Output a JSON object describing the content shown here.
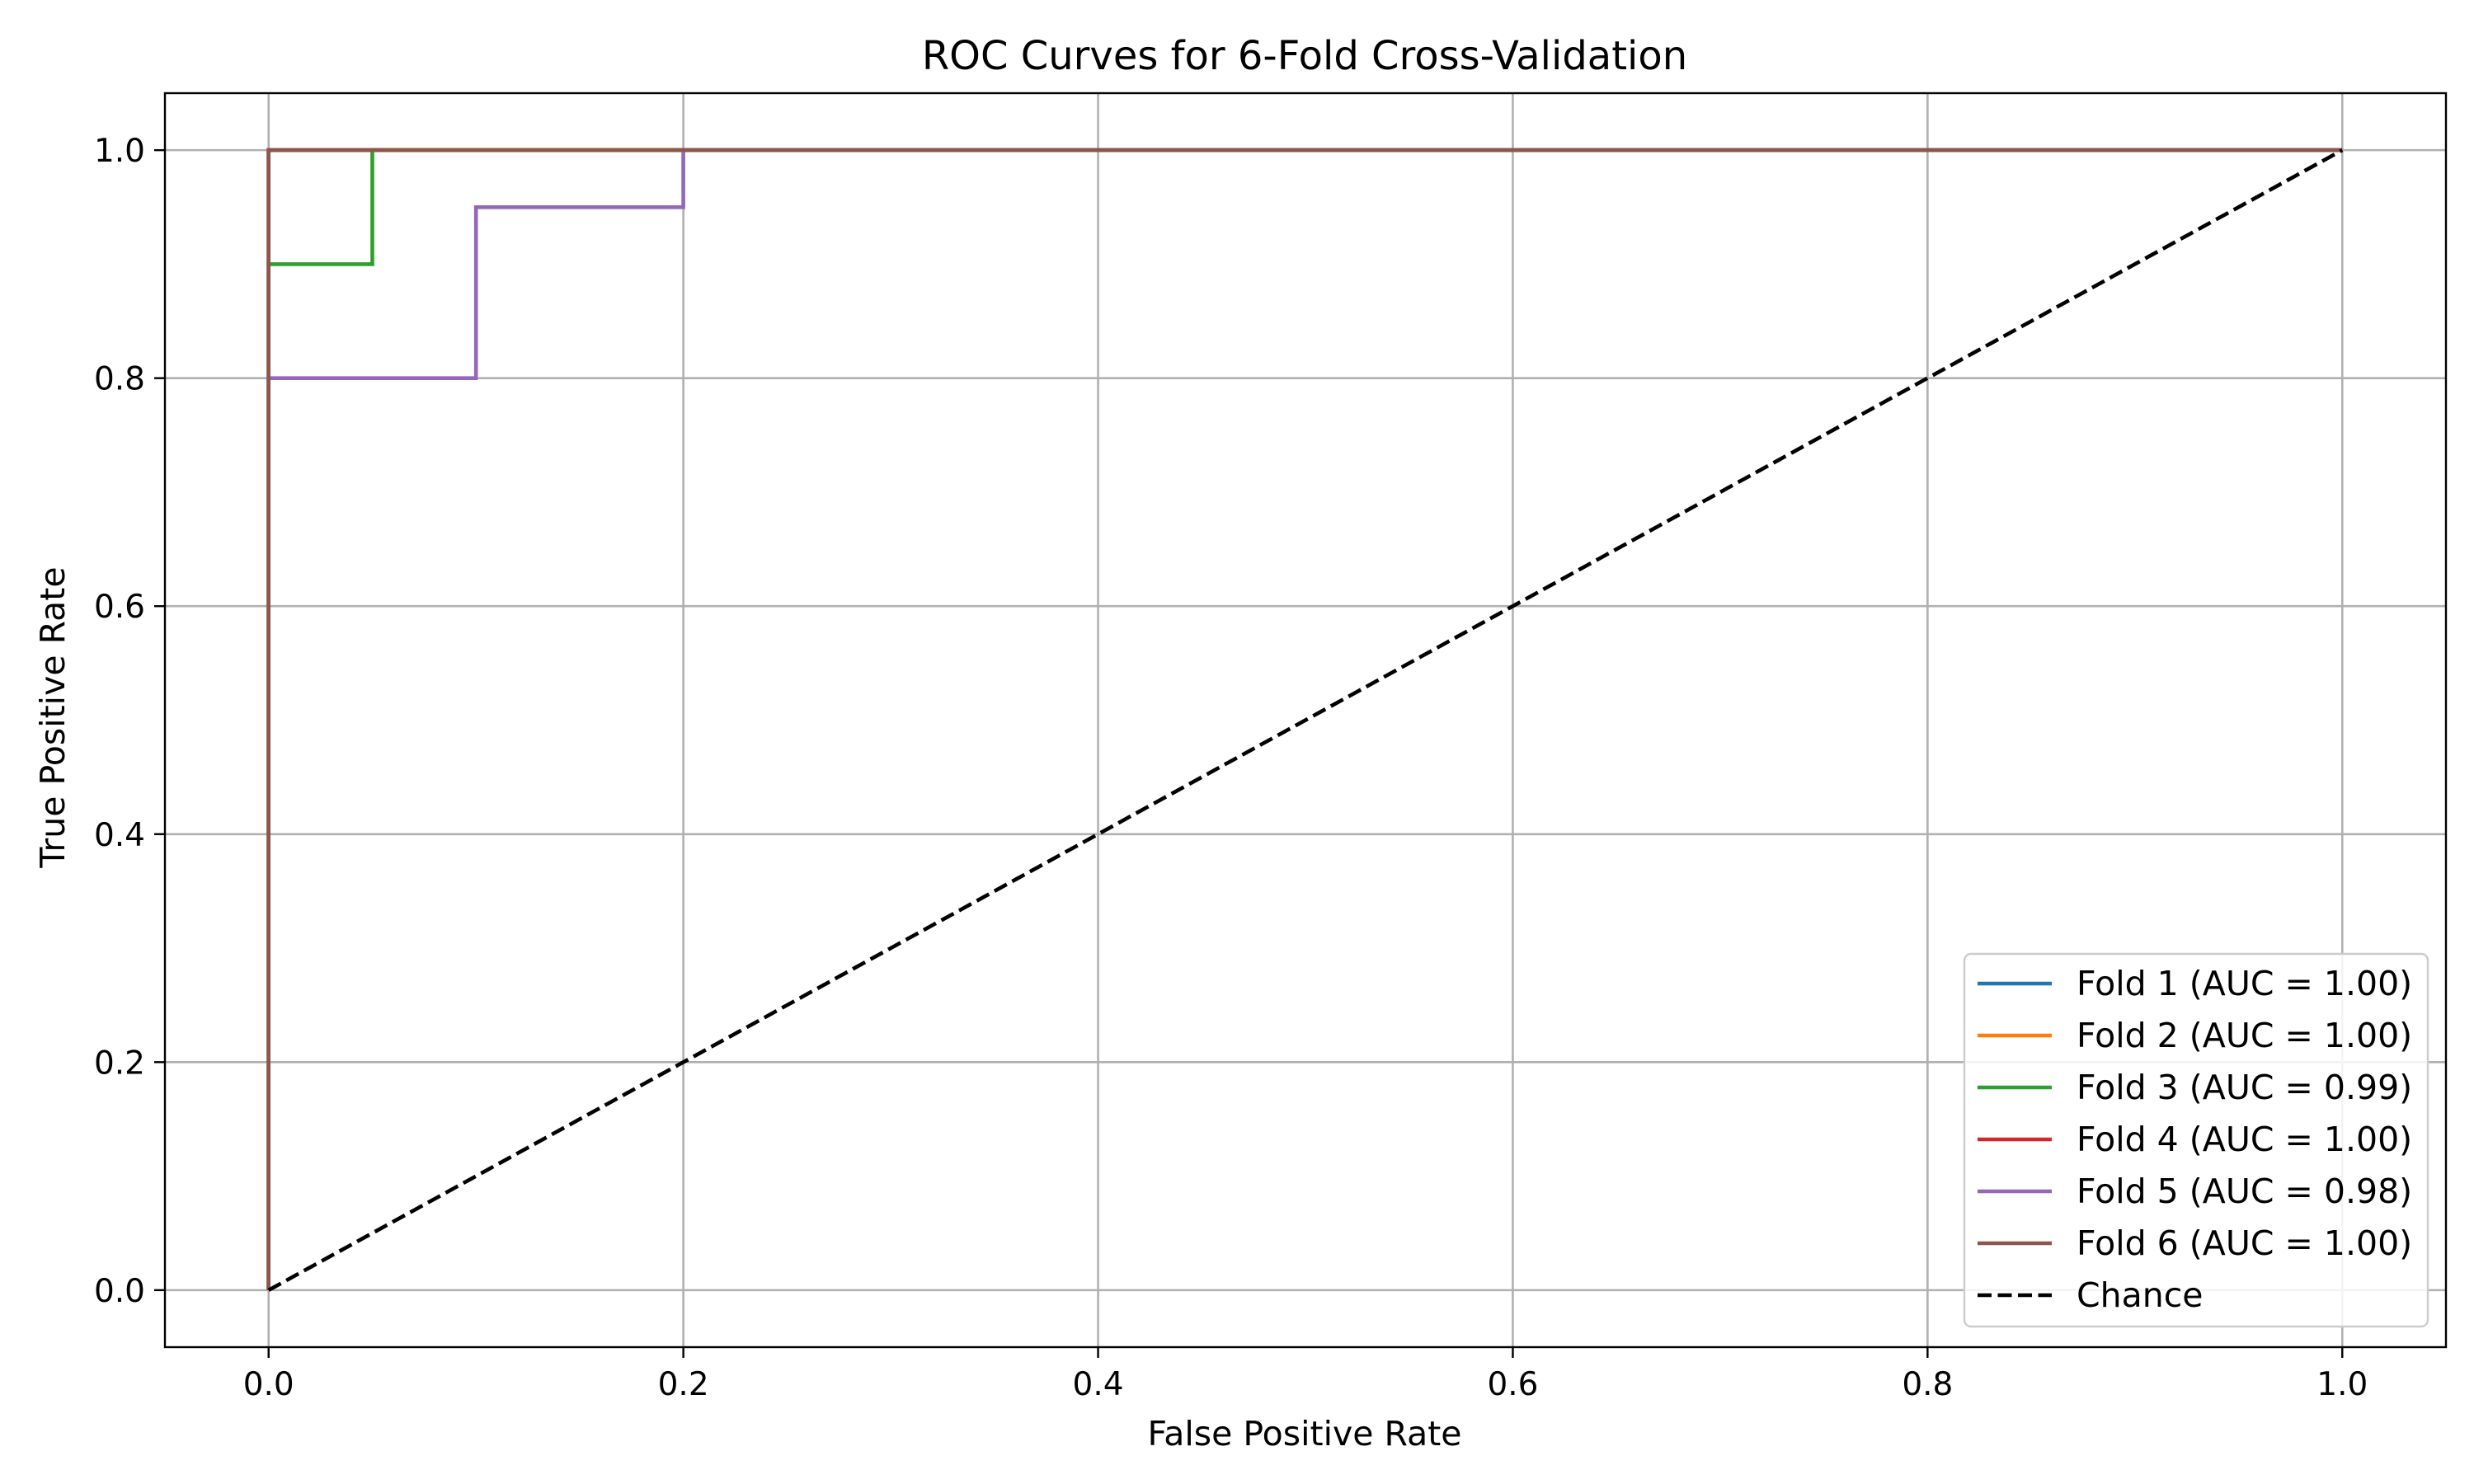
{
  "chart_data": {
    "type": "line",
    "title": "ROC Curves for 6-Fold Cross-Validation",
    "xlabel": "False Positive Rate",
    "ylabel": "True Positive Rate",
    "xlim": [
      -0.05,
      1.05
    ],
    "ylim": [
      -0.05,
      1.05
    ],
    "xticks": [
      0.0,
      0.2,
      0.4,
      0.6,
      0.8,
      1.0
    ],
    "yticks": [
      0.0,
      0.2,
      0.4,
      0.6,
      0.8,
      1.0
    ],
    "xtick_labels": [
      "0.0",
      "0.2",
      "0.4",
      "0.6",
      "0.8",
      "1.0"
    ],
    "ytick_labels": [
      "0.0",
      "0.2",
      "0.4",
      "0.6",
      "0.8",
      "1.0"
    ],
    "grid": true,
    "legend_position": "lower-right",
    "series": [
      {
        "name": "Fold 1 (AUC = 1.00)",
        "color": "#1f77b4",
        "dash": "solid",
        "x": [
          0.0,
          0.0,
          1.0
        ],
        "y": [
          0.0,
          1.0,
          1.0
        ]
      },
      {
        "name": "Fold 2 (AUC = 1.00)",
        "color": "#ff7f0e",
        "dash": "solid",
        "x": [
          0.0,
          0.0,
          1.0
        ],
        "y": [
          0.0,
          1.0,
          1.0
        ]
      },
      {
        "name": "Fold 3 (AUC = 0.99)",
        "color": "#2ca02c",
        "dash": "solid",
        "x": [
          0.0,
          0.0,
          0.05,
          0.05,
          1.0
        ],
        "y": [
          0.0,
          0.9,
          0.9,
          1.0,
          1.0
        ]
      },
      {
        "name": "Fold 4 (AUC = 1.00)",
        "color": "#d62728",
        "dash": "solid",
        "x": [
          0.0,
          0.0,
          1.0
        ],
        "y": [
          0.0,
          1.0,
          1.0
        ]
      },
      {
        "name": "Fold 5 (AUC = 0.98)",
        "color": "#9467bd",
        "dash": "solid",
        "x": [
          0.0,
          0.0,
          0.1,
          0.1,
          0.2,
          0.2,
          1.0
        ],
        "y": [
          0.0,
          0.8,
          0.8,
          0.95,
          0.95,
          1.0,
          1.0
        ]
      },
      {
        "name": "Fold 6 (AUC = 1.00)",
        "color": "#8c564b",
        "dash": "solid",
        "x": [
          0.0,
          0.0,
          1.0
        ],
        "y": [
          0.0,
          1.0,
          1.0
        ]
      },
      {
        "name": "Chance",
        "color": "#000000",
        "dash": "dashed",
        "x": [
          0.0,
          1.0
        ],
        "y": [
          0.0,
          1.0
        ]
      }
    ]
  }
}
